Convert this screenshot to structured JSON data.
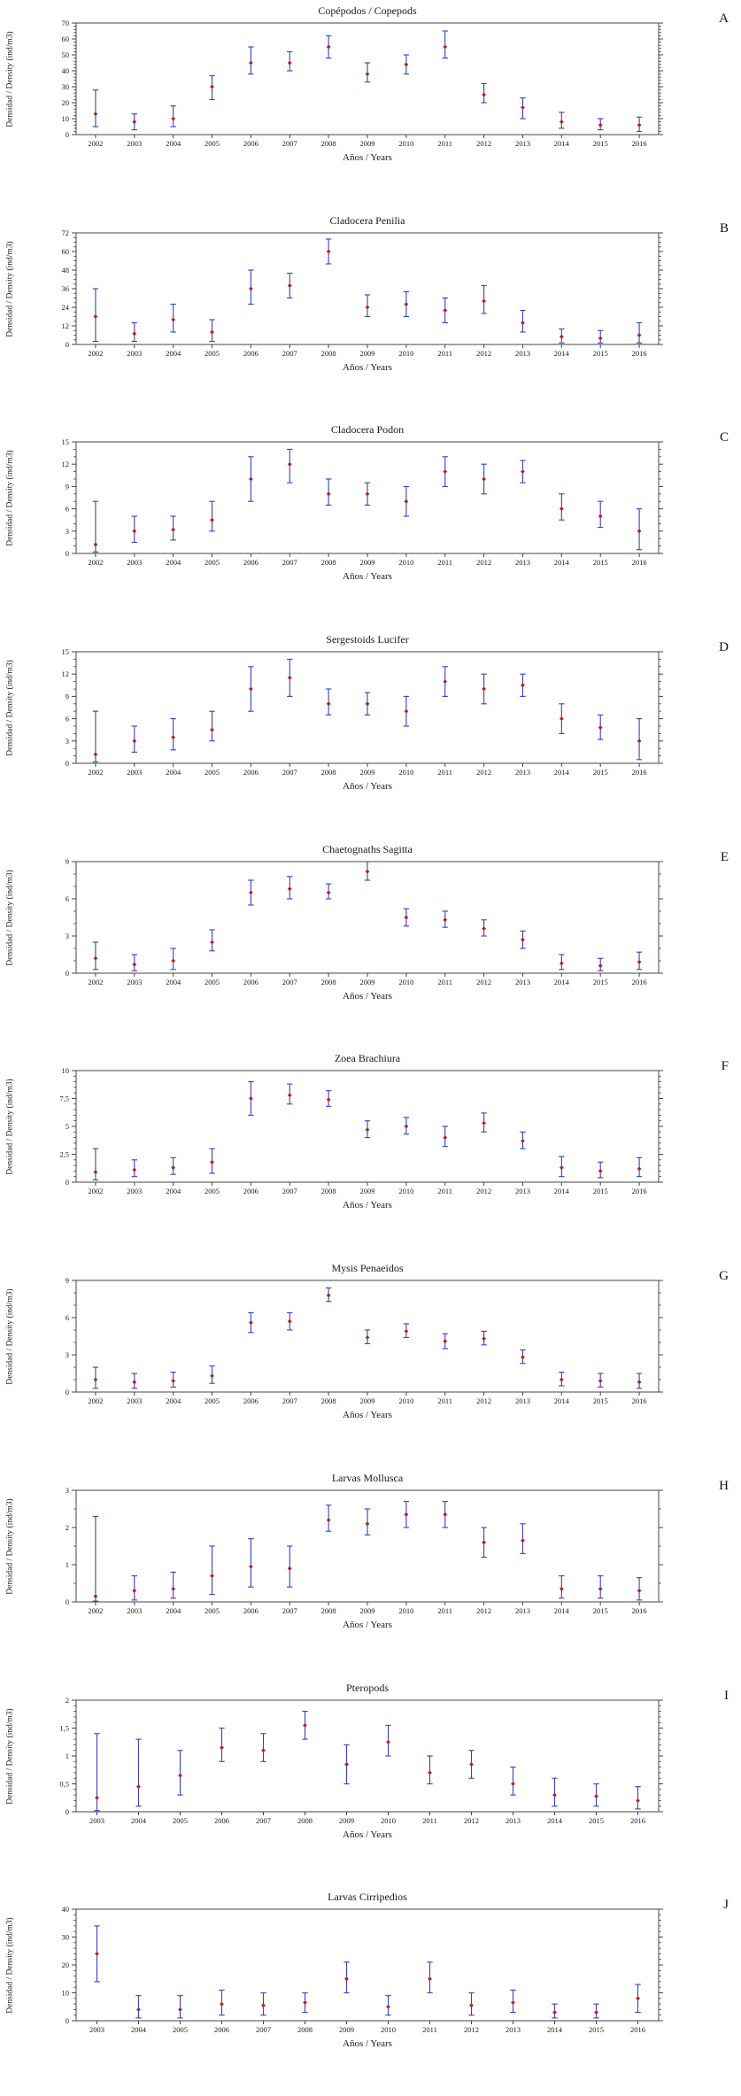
{
  "style": {
    "background": "#ffffff",
    "axis_color": "#444444",
    "text_color": "#1a1a1a",
    "errorbar_color": "#3d3dc4",
    "marker_color": "#b22222"
  },
  "chart_data": [
    {
      "type": "errorbar",
      "panel_letter": "A",
      "title": "Copépodos / Copepods",
      "xlabel": "Años / Years",
      "ylabel": "Densidad / Density (ind/m3)",
      "ylim": [
        0,
        70
      ],
      "yticks": [
        0,
        10,
        20,
        30,
        40,
        50,
        60,
        70
      ],
      "ytick_labels": [
        "0",
        "10",
        "20",
        "30",
        "40",
        "50",
        "60",
        "70"
      ],
      "minor_per_major": 5,
      "years": [
        2002,
        2003,
        2004,
        2005,
        2006,
        2007,
        2008,
        2009,
        2010,
        2011,
        2012,
        2013,
        2014,
        2015,
        2016
      ],
      "series": {
        "mean": [
          13,
          8,
          10,
          30,
          45,
          45,
          55,
          38,
          44,
          55,
          25,
          17,
          8,
          6,
          6
        ],
        "lo": [
          5,
          3,
          5,
          22,
          38,
          40,
          48,
          33,
          38,
          48,
          20,
          10,
          4,
          3,
          2
        ],
        "hi": [
          28,
          13,
          18,
          37,
          55,
          52,
          62,
          45,
          50,
          65,
          32,
          23,
          14,
          10,
          11
        ]
      }
    },
    {
      "type": "errorbar",
      "panel_letter": "B",
      "title": "Cladocera Penilia",
      "xlabel": "Años / Years",
      "ylabel": "Densidad / Density (ind/m3)",
      "ylim": [
        0,
        72
      ],
      "yticks": [
        0,
        12,
        24,
        36,
        48,
        60,
        72
      ],
      "ytick_labels": [
        "0",
        "12",
        "24",
        "36",
        "48",
        "60",
        "72"
      ],
      "minor_per_major": 4,
      "years": [
        2002,
        2003,
        2004,
        2005,
        2006,
        2007,
        2008,
        2009,
        2010,
        2011,
        2012,
        2013,
        2014,
        2015,
        2016
      ],
      "series": {
        "mean": [
          18,
          7,
          16,
          8,
          36,
          38,
          60,
          24,
          26,
          22,
          28,
          14,
          5,
          4,
          6
        ],
        "lo": [
          2,
          2,
          8,
          2,
          26,
          30,
          52,
          18,
          18,
          14,
          20,
          8,
          1,
          1,
          1
        ],
        "hi": [
          36,
          14,
          26,
          16,
          48,
          46,
          68,
          32,
          34,
          30,
          38,
          22,
          10,
          9,
          14
        ]
      }
    },
    {
      "type": "errorbar",
      "panel_letter": "C",
      "title": "Cladocera Podon",
      "xlabel": "Años / Years",
      "ylabel": "Densidad / Density (ind/m3)",
      "ylim": [
        0,
        15
      ],
      "yticks": [
        0,
        3,
        6,
        9,
        12,
        15
      ],
      "ytick_labels": [
        "0",
        "3",
        "6",
        "9",
        "12",
        "15"
      ],
      "minor_per_major": 3,
      "years": [
        2002,
        2003,
        2004,
        2005,
        2006,
        2007,
        2008,
        2009,
        2010,
        2011,
        2012,
        2013,
        2014,
        2015,
        2016
      ],
      "series": {
        "mean": [
          1.2,
          3,
          3.2,
          4.5,
          10,
          12,
          8,
          8,
          7,
          11,
          10,
          11,
          6,
          5,
          3
        ],
        "lo": [
          0.2,
          1.5,
          1.8,
          3,
          7,
          9.5,
          6.5,
          6.5,
          5,
          9,
          8,
          9.5,
          4.5,
          3.5,
          0.5
        ],
        "hi": [
          7,
          5,
          5,
          7,
          13,
          14,
          10,
          9.5,
          9,
          13,
          12,
          12.5,
          8,
          7,
          6
        ]
      }
    },
    {
      "type": "errorbar",
      "panel_letter": "D",
      "title": "Sergestoids Lucifer",
      "xlabel": "Años / Years",
      "ylabel": "Densidad / Density (ind/m3)",
      "ylim": [
        0,
        15
      ],
      "yticks": [
        0,
        3,
        6,
        9,
        12,
        15
      ],
      "ytick_labels": [
        "0",
        "3",
        "6",
        "9",
        "12",
        "15"
      ],
      "minor_per_major": 3,
      "years": [
        2002,
        2003,
        2004,
        2005,
        2006,
        2007,
        2008,
        2009,
        2010,
        2011,
        2012,
        2013,
        2014,
        2015,
        2016
      ],
      "series": {
        "mean": [
          1.2,
          3,
          3.5,
          4.5,
          10,
          11.5,
          8,
          8,
          7,
          11,
          10,
          10.5,
          6,
          4.8,
          3
        ],
        "lo": [
          0.2,
          1.5,
          1.8,
          3,
          7,
          9,
          6.5,
          6.5,
          5,
          9,
          8,
          9,
          4,
          3.2,
          0.5
        ],
        "hi": [
          7,
          5,
          6,
          7,
          13,
          14,
          10,
          9.5,
          9,
          13,
          12,
          12,
          8,
          6.5,
          6
        ]
      }
    },
    {
      "type": "errorbar",
      "panel_letter": "E",
      "title": "Chaetognaths Sagitta",
      "xlabel": "Años / Years",
      "ylabel": "Densidad / Density (ind/m3)",
      "ylim": [
        0,
        9
      ],
      "yticks": [
        0,
        3,
        6,
        9
      ],
      "ytick_labels": [
        "0",
        "3",
        "6",
        "9"
      ],
      "minor_per_major": 3,
      "years": [
        2002,
        2003,
        2004,
        2005,
        2006,
        2007,
        2008,
        2009,
        2010,
        2011,
        2012,
        2013,
        2014,
        2015,
        2016
      ],
      "series": {
        "mean": [
          1.2,
          0.7,
          1.0,
          2.5,
          6.5,
          6.8,
          6.5,
          8.2,
          4.5,
          4.3,
          3.6,
          2.7,
          0.8,
          0.6,
          0.9
        ],
        "lo": [
          0.3,
          0.2,
          0.3,
          1.8,
          5.5,
          6.0,
          6.0,
          7.5,
          3.8,
          3.7,
          3.0,
          2.0,
          0.3,
          0.2,
          0.3
        ],
        "hi": [
          2.5,
          1.5,
          2.0,
          3.5,
          7.5,
          7.8,
          7.2,
          9.0,
          5.2,
          5.0,
          4.3,
          3.4,
          1.5,
          1.2,
          1.7
        ]
      }
    },
    {
      "type": "errorbar",
      "panel_letter": "F",
      "title": "Zoea Brachiura",
      "xlabel": "Años / Years",
      "ylabel": "Densidad / Density (ind/m3)",
      "ylim": [
        0,
        10
      ],
      "yticks": [
        0,
        2.5,
        5,
        7.5,
        10
      ],
      "ytick_labels": [
        "0",
        "2,5",
        "5",
        "7,5",
        "10"
      ],
      "minor_per_major": 5,
      "years": [
        2002,
        2003,
        2004,
        2005,
        2006,
        2007,
        2008,
        2009,
        2010,
        2011,
        2012,
        2013,
        2014,
        2015,
        2016
      ],
      "series": {
        "mean": [
          0.9,
          1.1,
          1.3,
          1.8,
          7.5,
          7.8,
          7.4,
          4.7,
          5.0,
          4.0,
          5.3,
          3.7,
          1.3,
          1.0,
          1.2
        ],
        "lo": [
          0.2,
          0.5,
          0.7,
          0.8,
          6.0,
          7.0,
          6.8,
          4.0,
          4.3,
          3.2,
          4.5,
          3.0,
          0.5,
          0.4,
          0.5
        ],
        "hi": [
          3.0,
          2.0,
          2.2,
          3.0,
          9.0,
          8.8,
          8.2,
          5.5,
          5.8,
          5.0,
          6.2,
          4.5,
          2.3,
          1.8,
          2.2
        ]
      }
    },
    {
      "type": "errorbar",
      "panel_letter": "G",
      "title": "Mysis Penaeidos",
      "xlabel": "Años / Years",
      "ylabel": "Densidad / Density (ind/m3)",
      "ylim": [
        0,
        9
      ],
      "yticks": [
        0,
        3,
        6,
        9
      ],
      "ytick_labels": [
        "0",
        "3",
        "6",
        "9"
      ],
      "minor_per_major": 3,
      "years": [
        2002,
        2003,
        2004,
        2005,
        2006,
        2007,
        2008,
        2009,
        2010,
        2011,
        2012,
        2013,
        2014,
        2015,
        2016
      ],
      "series": {
        "mean": [
          1.0,
          0.8,
          0.9,
          1.3,
          5.6,
          5.7,
          7.8,
          4.4,
          4.9,
          4.1,
          4.3,
          2.8,
          1.0,
          0.9,
          0.8
        ],
        "lo": [
          0.3,
          0.3,
          0.4,
          0.7,
          4.8,
          5.0,
          7.3,
          3.9,
          4.4,
          3.5,
          3.8,
          2.3,
          0.5,
          0.4,
          0.3
        ],
        "hi": [
          2.0,
          1.5,
          1.6,
          2.1,
          6.4,
          6.4,
          8.4,
          5.0,
          5.5,
          4.7,
          4.9,
          3.4,
          1.6,
          1.5,
          1.5
        ]
      }
    },
    {
      "type": "errorbar",
      "panel_letter": "H",
      "title": "Larvas Mollusca",
      "xlabel": "Años / Years",
      "ylabel": "Densidad / Density (ind/m3)",
      "ylim": [
        0,
        3
      ],
      "yticks": [
        0,
        1,
        2,
        3
      ],
      "ytick_labels": [
        "0",
        "1",
        "2",
        "3"
      ],
      "minor_per_major": 2,
      "years": [
        2002,
        2003,
        2004,
        2005,
        2006,
        2007,
        2008,
        2009,
        2010,
        2011,
        2012,
        2013,
        2014,
        2015,
        2016
      ],
      "series": {
        "mean": [
          0.15,
          0.3,
          0.35,
          0.7,
          0.95,
          0.9,
          2.2,
          2.1,
          2.35,
          2.35,
          1.6,
          1.65,
          0.35,
          0.35,
          0.3
        ],
        "lo": [
          0.02,
          0.05,
          0.1,
          0.2,
          0.4,
          0.4,
          1.9,
          1.8,
          2.0,
          2.0,
          1.2,
          1.3,
          0.1,
          0.1,
          0.05
        ],
        "hi": [
          2.3,
          0.7,
          0.8,
          1.5,
          1.7,
          1.5,
          2.6,
          2.5,
          2.7,
          2.7,
          2.0,
          2.1,
          0.7,
          0.7,
          0.65
        ]
      }
    },
    {
      "type": "errorbar",
      "panel_letter": "I",
      "title": "Pteropods",
      "xlabel": "Años / Years",
      "ylabel": "Densidad / Density (ind/m3)",
      "ylim": [
        0,
        2
      ],
      "yticks": [
        0,
        0.5,
        1,
        1.5,
        2
      ],
      "ytick_labels": [
        "0",
        "0,5",
        "1",
        "1,5",
        "2"
      ],
      "minor_per_major": 5,
      "years": [
        2003,
        2004,
        2005,
        2006,
        2007,
        2008,
        2009,
        2010,
        2011,
        2012,
        2013,
        2014,
        2015,
        2016
      ],
      "series": {
        "mean": [
          0.25,
          0.45,
          0.65,
          1.15,
          1.1,
          1.55,
          0.85,
          1.25,
          0.7,
          0.85,
          0.5,
          0.3,
          0.28,
          0.2
        ],
        "lo": [
          0.02,
          0.1,
          0.3,
          0.9,
          0.9,
          1.3,
          0.5,
          1.0,
          0.5,
          0.6,
          0.3,
          0.1,
          0.1,
          0.05
        ],
        "hi": [
          1.4,
          1.3,
          1.1,
          1.5,
          1.4,
          1.8,
          1.2,
          1.55,
          1.0,
          1.1,
          0.8,
          0.6,
          0.5,
          0.45
        ]
      }
    },
    {
      "type": "errorbar",
      "panel_letter": "J",
      "title": "Larvas Cirripedios",
      "xlabel": "Años / Years",
      "ylabel": "Densidad / Density (ind/m3)",
      "ylim": [
        0,
        40
      ],
      "yticks": [
        0,
        10,
        20,
        30,
        40
      ],
      "ytick_labels": [
        "0",
        "10",
        "20",
        "30",
        "40"
      ],
      "minor_per_major": 5,
      "years": [
        2003,
        2004,
        2005,
        2006,
        2007,
        2008,
        2009,
        2010,
        2011,
        2012,
        2013,
        2014,
        2015,
        2016
      ],
      "series": {
        "mean": [
          24,
          4,
          4,
          6,
          5.5,
          6.5,
          15,
          5,
          15,
          5.5,
          6.5,
          3,
          3,
          8
        ],
        "lo": [
          14,
          1,
          1,
          2,
          2,
          3,
          10,
          2,
          10,
          2,
          3,
          1,
          1,
          3
        ],
        "hi": [
          34,
          9,
          9,
          11,
          10,
          10,
          21,
          9,
          21,
          10,
          11,
          6,
          6,
          13
        ]
      }
    }
  ]
}
